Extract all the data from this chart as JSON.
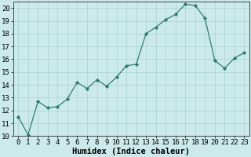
{
  "x": [
    0,
    1,
    2,
    3,
    4,
    5,
    6,
    7,
    8,
    9,
    10,
    11,
    12,
    13,
    14,
    15,
    16,
    17,
    18,
    19,
    20,
    21,
    22,
    23
  ],
  "y": [
    11.5,
    10.1,
    12.7,
    12.2,
    12.3,
    12.9,
    14.2,
    13.7,
    14.4,
    13.9,
    14.6,
    15.5,
    15.6,
    18.0,
    18.5,
    19.1,
    19.5,
    20.3,
    20.2,
    19.2,
    15.9,
    15.3,
    16.1,
    16.5
  ],
  "line_color": "#2e7d6e",
  "marker": "D",
  "marker_size": 2.2,
  "bg_color": "#cceaea",
  "grid_color": "#aacfcf",
  "xlabel": "Humidex (Indice chaleur)",
  "xlim": [
    -0.5,
    23.5
  ],
  "ylim": [
    10,
    20.5
  ],
  "yticks": [
    10,
    11,
    12,
    13,
    14,
    15,
    16,
    17,
    18,
    19,
    20
  ],
  "xticks": [
    0,
    1,
    2,
    3,
    4,
    5,
    6,
    7,
    8,
    9,
    10,
    11,
    12,
    13,
    14,
    15,
    16,
    17,
    18,
    19,
    20,
    21,
    22,
    23
  ],
  "tick_fontsize": 6.5,
  "xlabel_fontsize": 7.5
}
